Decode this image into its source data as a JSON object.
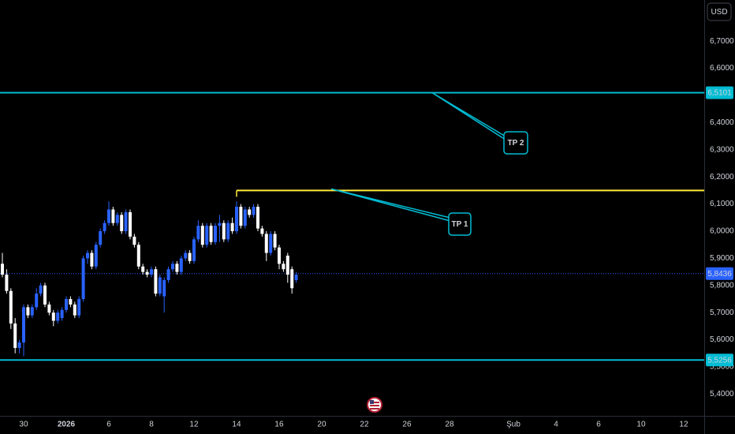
{
  "chart_data": {
    "type": "candlestick",
    "currency": "USD",
    "grid": false,
    "ylim": [
      5.3198,
      6.8517
    ],
    "yticks": [
      {
        "value": 6.7,
        "label": "6,7000"
      },
      {
        "value": 6.6,
        "label": "6,6000"
      },
      {
        "value": 6.4,
        "label": "6,4000"
      },
      {
        "value": 6.3,
        "label": "6,3000"
      },
      {
        "value": 6.2,
        "label": "6,2000"
      },
      {
        "value": 6.1,
        "label": "6,1000"
      },
      {
        "value": 6.0,
        "label": "6,0000"
      },
      {
        "value": 5.9,
        "label": "5,9000"
      },
      {
        "value": 5.8,
        "label": "5,8000"
      },
      {
        "value": 5.7,
        "label": "5,7000"
      },
      {
        "value": 5.6,
        "label": "5,6000"
      },
      {
        "value": 5.5,
        "label": "5,5000"
      },
      {
        "value": 5.4,
        "label": "5,4000"
      }
    ],
    "xlim": [
      -1.111,
      31.963
    ],
    "xticks": [
      {
        "value": 0,
        "label": "30"
      },
      {
        "value": 2,
        "label": "2026"
      },
      {
        "value": 4,
        "label": "6"
      },
      {
        "value": 6,
        "label": "8"
      },
      {
        "value": 8,
        "label": "12"
      },
      {
        "value": 10,
        "label": "14"
      },
      {
        "value": 12,
        "label": "16"
      },
      {
        "value": 14,
        "label": "20"
      },
      {
        "value": 16,
        "label": "22"
      },
      {
        "value": 18,
        "label": "26"
      },
      {
        "value": 20,
        "label": "28"
      },
      {
        "value": 23,
        "label": "Şub"
      },
      {
        "value": 25,
        "label": "4"
      },
      {
        "value": 27,
        "label": "6"
      },
      {
        "value": 29,
        "label": "10"
      },
      {
        "value": 31,
        "label": "12"
      }
    ],
    "up_color": "#2962ff",
    "down_color": "#ffffff",
    "ohlc": {
      "x": [
        -1.0,
        -0.8,
        -0.6,
        -0.4,
        -0.2,
        0.0,
        0.2,
        0.4,
        0.6,
        0.8,
        1.0,
        1.2,
        1.4,
        1.6,
        1.8,
        2.0,
        2.2,
        2.4,
        2.6,
        2.8,
        3.0,
        3.2,
        3.4,
        3.6,
        3.8,
        4.0,
        4.2,
        4.4,
        4.6,
        4.8,
        5.0,
        5.2,
        5.4,
        5.6,
        5.8,
        6.0,
        6.2,
        6.4,
        6.6,
        6.8,
        7.0,
        7.2,
        7.4,
        7.6,
        7.8,
        8.0,
        8.2,
        8.4,
        8.6,
        8.8,
        9.0,
        9.2,
        9.4,
        9.6,
        9.8,
        10.0,
        10.2,
        10.4,
        10.6,
        10.8,
        11.0,
        11.2,
        11.4,
        11.6,
        11.8,
        12.0,
        12.2,
        12.4,
        12.6,
        12.8
      ],
      "open": [
        5.88,
        5.84,
        5.78,
        5.66,
        5.57,
        5.59,
        5.72,
        5.69,
        5.72,
        5.77,
        5.8,
        5.73,
        5.7,
        5.67,
        5.68,
        5.71,
        5.75,
        5.73,
        5.69,
        5.75,
        5.9,
        5.92,
        5.87,
        5.95,
        6.0,
        6.03,
        6.08,
        6.03,
        6.06,
        6.0,
        6.07,
        5.98,
        5.95,
        5.87,
        5.85,
        5.84,
        5.86,
        5.77,
        5.76,
        5.82,
        5.86,
        5.88,
        5.85,
        5.9,
        5.92,
        5.89,
        5.97,
        6.02,
        5.95,
        6.02,
        5.96,
        6.02,
        6.03,
        5.97,
        6.03,
        6.0,
        6.09,
        6.02,
        6.08,
        6.06,
        6.09,
        6.01,
        5.99,
        5.92,
        5.99,
        5.94,
        5.88,
        5.91,
        5.86,
        5.82
      ],
      "high": [
        5.92,
        5.86,
        5.79,
        5.68,
        5.6,
        5.73,
        5.73,
        5.73,
        5.79,
        5.81,
        5.81,
        5.74,
        5.71,
        5.71,
        5.72,
        5.76,
        5.76,
        5.74,
        5.76,
        5.91,
        5.93,
        5.93,
        5.96,
        6.01,
        6.04,
        6.11,
        6.09,
        6.07,
        6.07,
        6.08,
        6.08,
        5.99,
        5.96,
        5.88,
        5.86,
        5.87,
        5.87,
        5.84,
        5.83,
        5.87,
        5.89,
        5.89,
        5.91,
        5.93,
        5.93,
        5.98,
        6.04,
        6.03,
        6.03,
        6.03,
        6.03,
        6.06,
        6.04,
        6.04,
        6.05,
        6.11,
        6.1,
        6.09,
        6.09,
        6.1,
        6.1,
        6.02,
        6.0,
        6.0,
        6.0,
        5.95,
        5.89,
        5.92,
        5.87,
        5.85
      ],
      "low": [
        5.83,
        5.77,
        5.64,
        5.55,
        5.55,
        5.54,
        5.68,
        5.68,
        5.71,
        5.76,
        5.72,
        5.69,
        5.65,
        5.66,
        5.67,
        5.7,
        5.72,
        5.68,
        5.68,
        5.74,
        5.88,
        5.86,
        5.86,
        5.94,
        5.99,
        6.02,
        6.02,
        6.02,
        5.99,
        5.99,
        5.97,
        5.94,
        5.86,
        5.84,
        5.83,
        5.83,
        5.76,
        5.76,
        5.7,
        5.81,
        5.85,
        5.84,
        5.84,
        5.89,
        5.88,
        5.88,
        5.96,
        5.94,
        5.94,
        5.95,
        5.95,
        5.96,
        5.96,
        5.96,
        5.99,
        5.99,
        6.01,
        6.01,
        6.05,
        6.05,
        6.0,
        5.98,
        5.89,
        5.91,
        5.93,
        5.86,
        5.85,
        5.81,
        5.77,
        5.81
      ],
      "close": [
        5.84,
        5.78,
        5.66,
        5.57,
        5.59,
        5.72,
        5.69,
        5.72,
        5.77,
        5.8,
        5.73,
        5.7,
        5.67,
        5.7,
        5.71,
        5.75,
        5.73,
        5.69,
        5.75,
        5.9,
        5.92,
        5.87,
        5.95,
        6.0,
        6.03,
        6.08,
        6.03,
        6.06,
        6.0,
        6.07,
        5.98,
        5.95,
        5.87,
        5.85,
        5.84,
        5.86,
        5.77,
        5.83,
        5.82,
        5.86,
        5.88,
        5.85,
        5.9,
        5.92,
        5.89,
        5.97,
        6.02,
        5.95,
        6.02,
        5.96,
        6.02,
        6.03,
        5.97,
        6.03,
        6.0,
        6.09,
        6.02,
        6.08,
        6.06,
        6.09,
        6.01,
        5.99,
        5.92,
        5.99,
        5.94,
        5.88,
        5.86,
        5.84,
        5.79,
        5.84
      ]
    },
    "levels": [
      {
        "value": 6.5101,
        "label": "6,5101",
        "color": "#00bcd4"
      },
      {
        "value": 5.5256,
        "label": "5,5256",
        "color": "#00bcd4"
      },
      {
        "value": 6.15,
        "color": "#ffeb3b"
      },
      {
        "value": 5.8436,
        "label": "5,8436",
        "color": "#2962ff"
      }
    ],
    "annotations": [
      {
        "text": "TP 1"
      },
      {
        "text": "TP 2"
      }
    ]
  }
}
